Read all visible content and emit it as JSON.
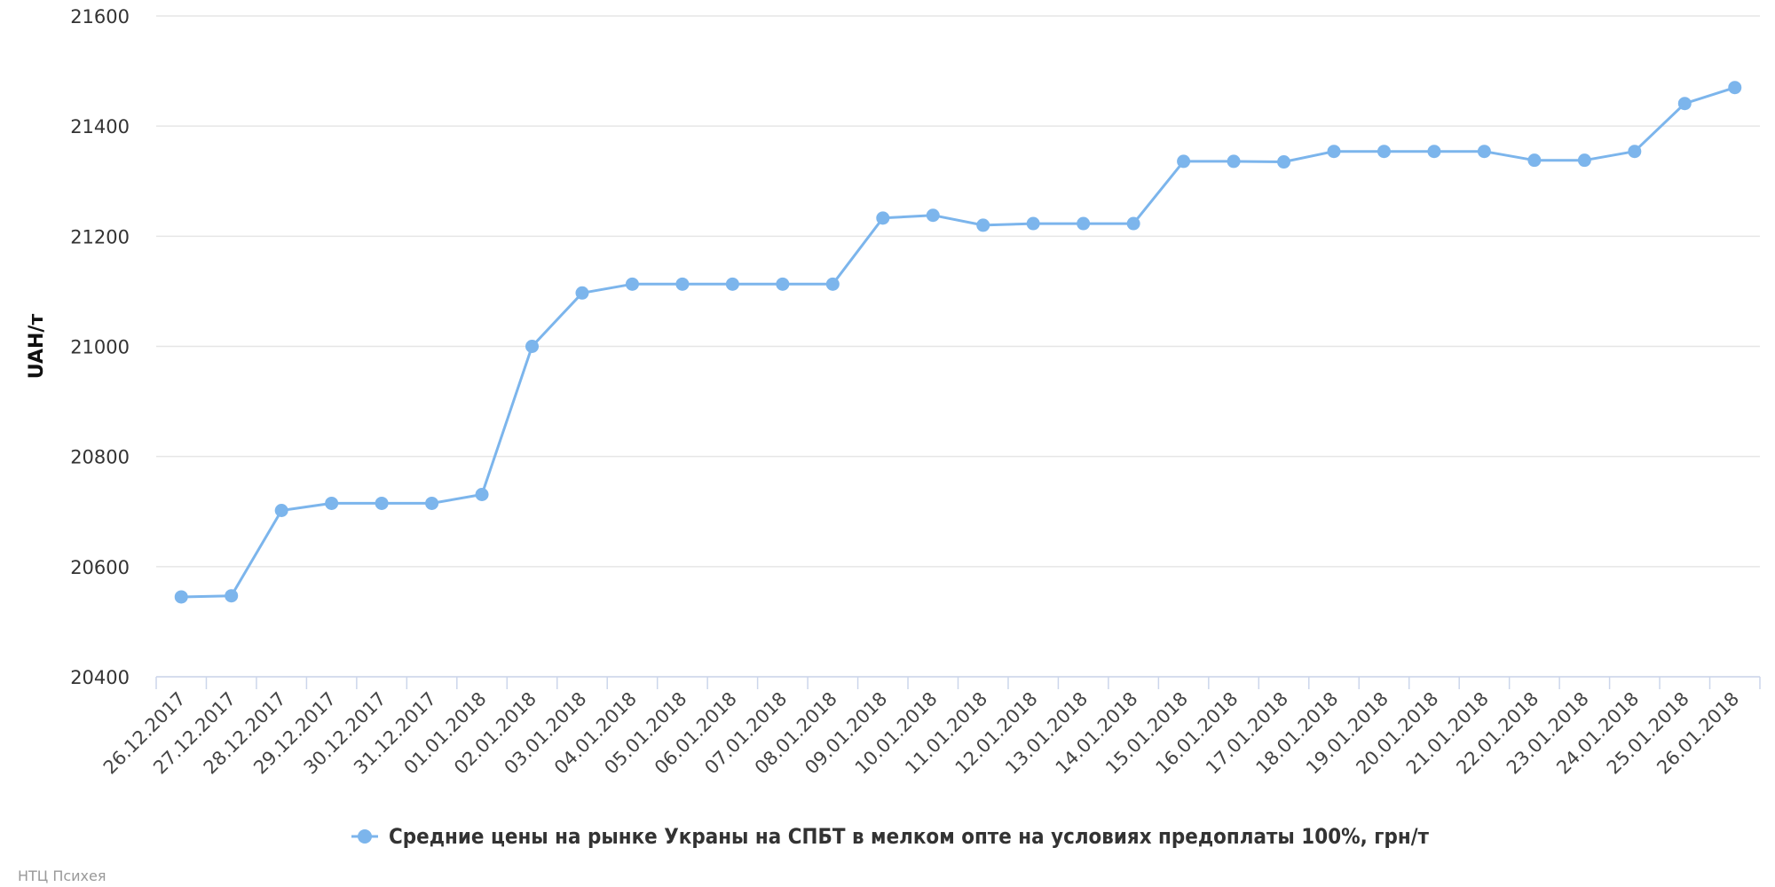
{
  "chart_data": {
    "type": "line",
    "ylabel": "UAH/т",
    "ylim": [
      20400,
      21600
    ],
    "yticks": [
      20400,
      20600,
      20800,
      21000,
      21200,
      21400,
      21600
    ],
    "grid": true,
    "legend_position": "bottom-center",
    "categories": [
      "26.12.2017",
      "27.12.2017",
      "28.12.2017",
      "29.12.2017",
      "30.12.2017",
      "31.12.2017",
      "01.01.2018",
      "02.01.2018",
      "03.01.2018",
      "04.01.2018",
      "05.01.2018",
      "06.01.2018",
      "07.01.2018",
      "08.01.2018",
      "09.01.2018",
      "10.01.2018",
      "11.01.2018",
      "12.01.2018",
      "13.01.2018",
      "14.01.2018",
      "15.01.2018",
      "16.01.2018",
      "17.01.2018",
      "18.01.2018",
      "19.01.2018",
      "20.01.2018",
      "21.01.2018",
      "22.01.2018",
      "23.01.2018",
      "24.01.2018",
      "25.01.2018",
      "26.01.2018"
    ],
    "series": [
      {
        "name": "Средние цены на рынке Украны на СПБТ в мелком опте на условиях предоплаты 100%, грн/т",
        "color": "#7cb5ec",
        "values": [
          20545,
          20547,
          20702,
          20715,
          20715,
          20715,
          20731,
          21000,
          21097,
          21113,
          21113,
          21113,
          21113,
          21113,
          21233,
          21238,
          21220,
          21223,
          21223,
          21223,
          21336,
          21336,
          21335,
          21354,
          21354,
          21354,
          21354,
          21338,
          21338,
          21354,
          21441,
          21470
        ]
      }
    ]
  },
  "credit": "НТЦ Психея"
}
